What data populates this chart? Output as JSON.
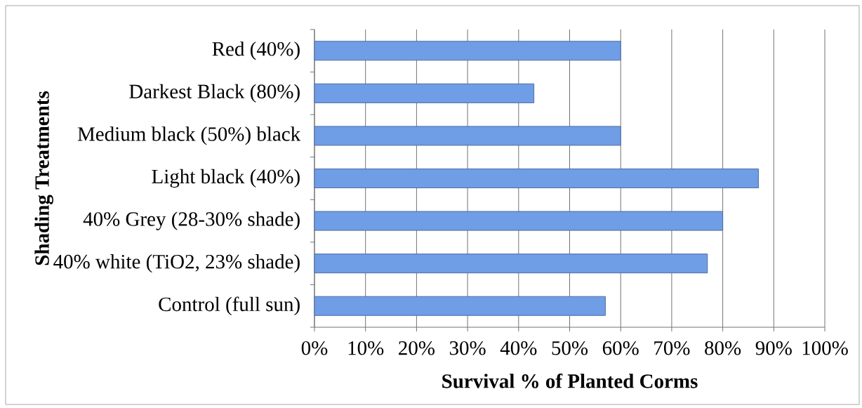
{
  "chart_data": {
    "type": "bar",
    "orientation": "horizontal",
    "xlabel": "Survival % of Planted Corms",
    "ylabel": "Shading Treatments",
    "categories": [
      "Red (40%)",
      "Darkest Black (80%)",
      "Medium black (50%) black",
      "Light black (40%)",
      "40% Grey (28-30% shade)",
      "40% white (TiO2, 23% shade)",
      "Control (full sun)"
    ],
    "values": [
      60,
      43,
      60,
      87,
      80,
      77,
      57
    ],
    "color": "#6f9de6",
    "xlim": [
      0,
      100
    ],
    "xticks": [
      {
        "value": 0,
        "label": "0%"
      },
      {
        "value": 10,
        "label": "10%"
      },
      {
        "value": 20,
        "label": "20%"
      },
      {
        "value": 30,
        "label": "30%"
      },
      {
        "value": 40,
        "label": "40%"
      },
      {
        "value": 50,
        "label": "50%"
      },
      {
        "value": 60,
        "label": "60%"
      },
      {
        "value": 70,
        "label": "70%"
      },
      {
        "value": 80,
        "label": "80%"
      },
      {
        "value": 90,
        "label": "90%"
      },
      {
        "value": 100,
        "label": "100%"
      }
    ],
    "grid": "x"
  }
}
